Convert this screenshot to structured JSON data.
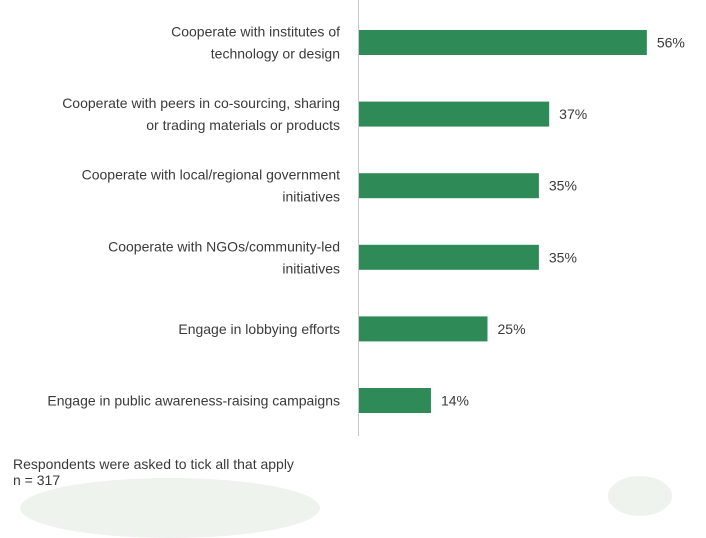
{
  "chart_data": {
    "type": "bar",
    "orientation": "horizontal",
    "categories": [
      [
        "Cooperate with institutes of",
        "technology or design"
      ],
      [
        "Cooperate with peers in co-sourcing, sharing",
        "or trading materials or products"
      ],
      [
        "Cooperate with local/regional government",
        "initiatives"
      ],
      [
        "Cooperate with NGOs/community-led",
        "initiatives"
      ],
      [
        "Engage in lobbying efforts"
      ],
      [
        "Engage in public awareness-raising campaigns"
      ]
    ],
    "values": [
      56,
      37,
      35,
      35,
      25,
      14
    ],
    "value_labels": [
      "56%",
      "37%",
      "35%",
      "35%",
      "25%",
      "14%"
    ],
    "unit": "%",
    "xlim": [
      0,
      100
    ],
    "grid": false,
    "legend": "none"
  },
  "colors": {
    "bar": "#2e8b57",
    "axis": "#c8c8c8",
    "text": "#3a3a3a"
  },
  "notes": {
    "line1": "Respondents were asked to tick all that apply",
    "line2": "n = 317"
  }
}
